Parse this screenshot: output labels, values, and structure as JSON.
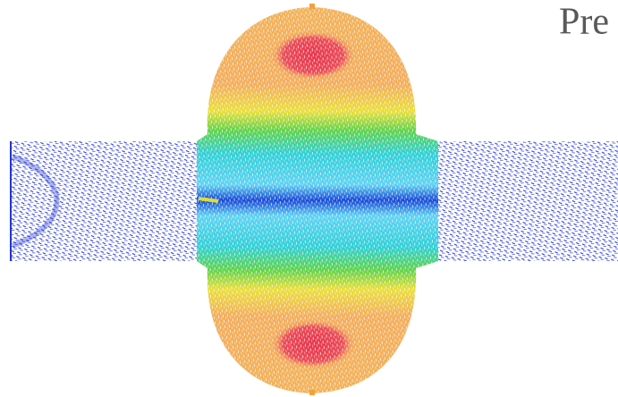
{
  "header": {
    "title": "Pre"
  }
}
